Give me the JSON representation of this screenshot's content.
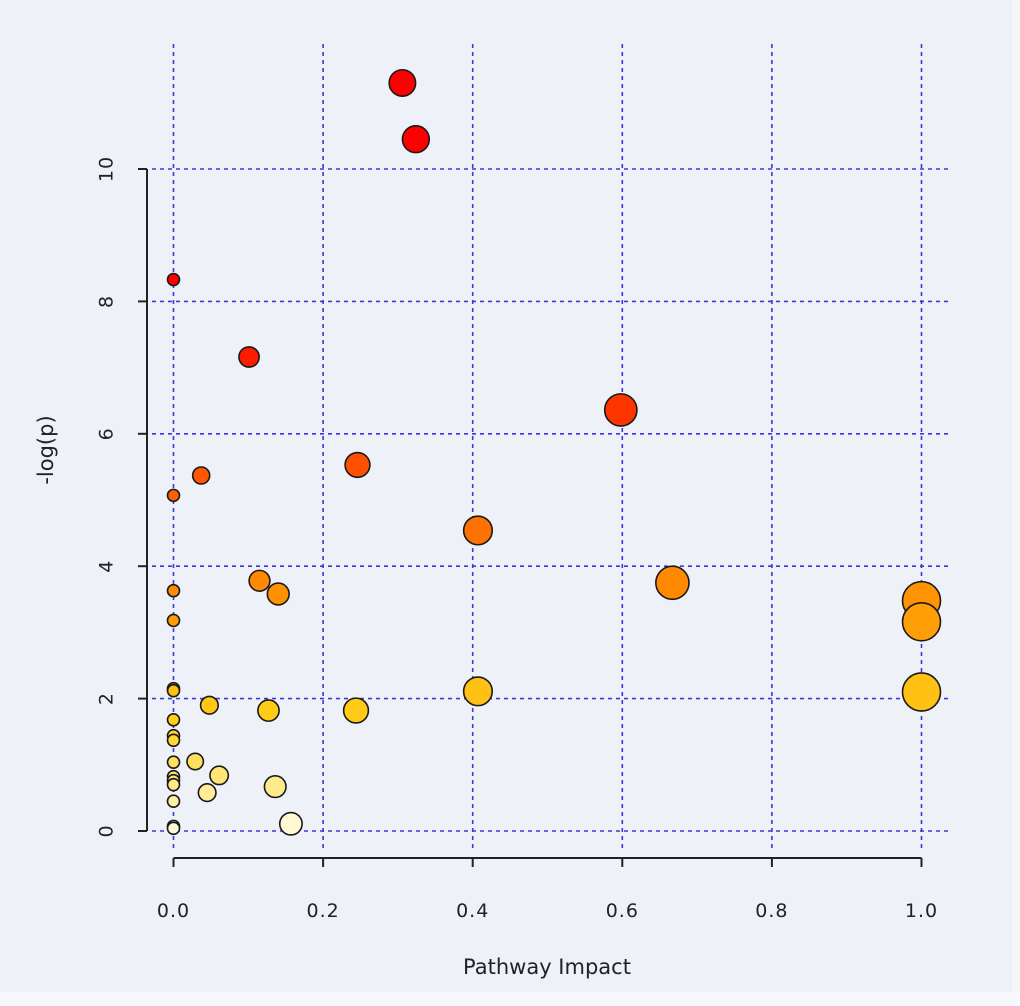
{
  "chart_data": {
    "type": "scatter",
    "title": "",
    "xlabel": "Pathway Impact",
    "ylabel": "-log(p)",
    "xlim": [
      0.0,
      1.0
    ],
    "ylim": [
      0,
      11.5
    ],
    "x_ticks": [
      "0.0",
      "0.2",
      "0.4",
      "0.6",
      "0.8",
      "1.0"
    ],
    "y_ticks": [
      "0",
      "2",
      "4",
      "6",
      "8",
      "10"
    ],
    "grid": true,
    "legend": "none",
    "colors": {
      "grid": "#3a3ad8",
      "axis": "#222222",
      "low": "#fffbe0",
      "mid": "#ffd21a",
      "orange": "#ff8c00",
      "high": "#ff0000"
    },
    "size_encoding": "pathway impact",
    "color_encoding": "-log(p)",
    "points": [
      {
        "x": 0.306,
        "y": 11.3
      },
      {
        "x": 0.324,
        "y": 10.45
      },
      {
        "x": 0.0,
        "y": 8.33
      },
      {
        "x": 0.101,
        "y": 7.16
      },
      {
        "x": 0.598,
        "y": 6.36
      },
      {
        "x": 0.246,
        "y": 5.53
      },
      {
        "x": 0.037,
        "y": 5.37
      },
      {
        "x": 0.0,
        "y": 5.07
      },
      {
        "x": 0.407,
        "y": 4.54
      },
      {
        "x": 0.115,
        "y": 3.78
      },
      {
        "x": 0.667,
        "y": 3.75
      },
      {
        "x": 0.0,
        "y": 3.63
      },
      {
        "x": 0.14,
        "y": 3.58
      },
      {
        "x": 1.0,
        "y": 3.48
      },
      {
        "x": 0.0,
        "y": 3.18
      },
      {
        "x": 1.0,
        "y": 3.16
      },
      {
        "x": 0.0,
        "y": 2.15
      },
      {
        "x": 0.0,
        "y": 2.12
      },
      {
        "x": 0.407,
        "y": 2.11
      },
      {
        "x": 1.0,
        "y": 2.1
      },
      {
        "x": 0.048,
        "y": 1.9
      },
      {
        "x": 0.127,
        "y": 1.82
      },
      {
        "x": 0.244,
        "y": 1.82
      },
      {
        "x": 0.0,
        "y": 1.68
      },
      {
        "x": 0.0,
        "y": 1.44
      },
      {
        "x": 0.0,
        "y": 1.37
      },
      {
        "x": 0.029,
        "y": 1.05
      },
      {
        "x": 0.0,
        "y": 1.04
      },
      {
        "x": 0.061,
        "y": 0.84
      },
      {
        "x": 0.0,
        "y": 0.82
      },
      {
        "x": 0.0,
        "y": 0.76
      },
      {
        "x": 0.0,
        "y": 0.7
      },
      {
        "x": 0.136,
        "y": 0.67
      },
      {
        "x": 0.045,
        "y": 0.58
      },
      {
        "x": 0.0,
        "y": 0.45
      },
      {
        "x": 0.157,
        "y": 0.11
      },
      {
        "x": 0.0,
        "y": 0.07
      },
      {
        "x": 0.0,
        "y": 0.04
      }
    ]
  }
}
